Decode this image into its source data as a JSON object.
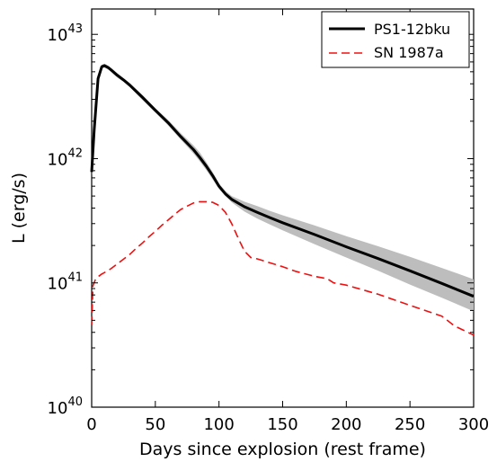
{
  "chart_data": {
    "type": "line",
    "xlabel": "Days since explosion (rest frame)",
    "ylabel": "L (erg/s)",
    "xlim": [
      0,
      300
    ],
    "ylim": [
      1e+40,
      1.6e+43
    ],
    "yscale": "log",
    "x_ticks": [
      0,
      50,
      100,
      150,
      200,
      250,
      300
    ],
    "x_tick_labels": [
      "0",
      "50",
      "100",
      "150",
      "200",
      "250",
      "300"
    ],
    "y_ticks": [
      {
        "value": 1e+40,
        "base": "10",
        "exp": "40"
      },
      {
        "value": 1e+41,
        "base": "10",
        "exp": "41"
      },
      {
        "value": 1e+42,
        "base": "10",
        "exp": "42"
      },
      {
        "value": 1e+43,
        "base": "10",
        "exp": "43"
      }
    ],
    "grid": false,
    "legend_position": "top-right",
    "series": [
      {
        "name": "PS1-12bku",
        "color": "#000000",
        "style": "solid",
        "x": [
          0,
          2,
          5,
          8,
          10,
          13,
          15,
          20,
          25,
          30,
          40,
          50,
          60,
          70,
          80,
          85,
          90,
          95,
          100,
          105,
          110,
          120,
          130,
          140,
          150,
          175,
          200,
          225,
          250,
          275,
          300
        ],
        "y": [
          7.8e+41,
          1.7e+42,
          4.4e+42,
          5.5e+42,
          5.6e+42,
          5.4e+42,
          5.2e+42,
          4.7e+42,
          4.3e+42,
          3.9e+42,
          3.1e+42,
          2.45e+42,
          1.95e+42,
          1.5e+42,
          1.18e+42,
          1.02e+42,
          8.7e+41,
          7.3e+41,
          6e+41,
          5.2e+41,
          4.7e+41,
          4.1e+41,
          3.7e+41,
          3.35e+41,
          3.05e+41,
          2.45e+41,
          1.95e+41,
          1.57e+41,
          1.25e+41,
          9.9e+40,
          7.8e+40
        ],
        "band_lower": [
          7.2e+41,
          1.6e+42,
          4.2e+42,
          5.3e+42,
          5.4e+42,
          5.2e+42,
          5e+42,
          4.5e+42,
          4.15e+42,
          3.75e+42,
          2.95e+42,
          2.35e+42,
          1.85e+42,
          1.42e+42,
          1.1e+42,
          9.5e+41,
          8.1e+41,
          6.8e+41,
          5.7e+41,
          5e+41,
          4.45e+41,
          3.75e+41,
          3.3e+41,
          2.95e+41,
          2.65e+41,
          2.05e+41,
          1.6e+41,
          1.25e+41,
          9.7e+40,
          7.6e+40,
          5.9e+40
        ],
        "band_upper": [
          8.4e+41,
          1.8e+42,
          4.6e+42,
          5.7e+42,
          5.8e+42,
          5.6e+42,
          5.4e+42,
          4.9e+42,
          4.45e+42,
          4.05e+42,
          3.25e+42,
          2.55e+42,
          2.05e+42,
          1.6e+42,
          1.28e+42,
          1.12e+42,
          9.4e+41,
          7.8e+41,
          6.3e+41,
          5.5e+41,
          5e+41,
          4.5e+41,
          4.15e+41,
          3.8e+41,
          3.5e+41,
          2.9e+41,
          2.38e+41,
          1.97e+41,
          1.62e+41,
          1.32e+41,
          1.07e+41
        ]
      },
      {
        "name": "SN 1987a",
        "color": "#ee1111",
        "style": "dashed",
        "x": [
          0,
          1,
          3,
          5,
          8,
          12,
          15,
          20,
          25,
          30,
          35,
          40,
          45,
          50,
          55,
          60,
          65,
          70,
          75,
          80,
          85,
          90,
          95,
          100,
          105,
          110,
          115,
          120,
          125,
          130,
          140,
          150,
          160,
          175,
          185,
          190,
          200,
          225,
          250,
          275,
          285,
          300
        ],
        "y": [
          4.6e+40,
          9.5e+40,
          1.07e+41,
          1.12e+41,
          1.18e+41,
          1.24e+41,
          1.3e+41,
          1.42e+41,
          1.55e+41,
          1.7e+41,
          1.9e+41,
          2.1e+41,
          2.35e+41,
          2.6e+41,
          2.9e+41,
          3.2e+41,
          3.55e+41,
          3.9e+41,
          4.15e+41,
          4.4e+41,
          4.5e+41,
          4.5e+41,
          4.45e+41,
          4.2e+41,
          3.7e+41,
          3e+41,
          2.3e+41,
          1.8e+41,
          1.6e+41,
          1.56e+41,
          1.45e+41,
          1.35e+41,
          1.24e+41,
          1.13e+41,
          1.08e+41,
          1e+41,
          9.6e+40,
          8.1e+40,
          6.6e+40,
          5.4e+40,
          4.5e+40,
          3.8e+40
        ]
      }
    ]
  }
}
